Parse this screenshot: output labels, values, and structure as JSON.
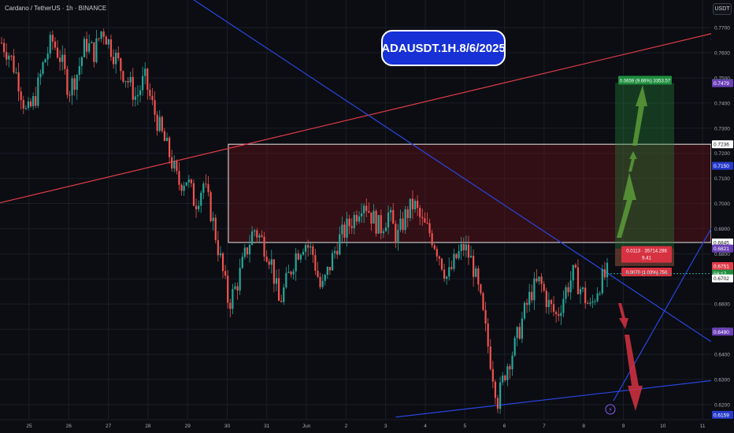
{
  "header": {
    "symbol_title": "Cardano / TetherUS · 1h · BINANCE",
    "idea_title": "ADAUSDT.1H.8/6/2025",
    "currency_button": "USDT"
  },
  "chart_data": {
    "type": "candlestick",
    "ylim": [
      0.614,
      0.781
    ],
    "y_ticks": [
      "0.7700",
      "0.7600",
      "0.7500",
      "0.7400",
      "0.7300",
      "0.7200",
      "0.7100",
      "0.7000",
      "0.6900",
      "0.6800",
      "0.6700",
      "0.6600",
      "0.6500",
      "0.6400",
      "0.6300",
      "0.6200"
    ],
    "x_labels": [
      "25",
      "26",
      "27",
      "28",
      "29",
      "30",
      "31",
      "Jun",
      "2",
      "3",
      "4",
      "5",
      "6",
      "7",
      "8",
      "9",
      "10",
      "11"
    ],
    "price_path": [
      [
        0,
        0.764
      ],
      [
        1,
        0.759
      ],
      [
        2,
        0.749
      ],
      [
        3,
        0.735
      ],
      [
        4,
        0.742
      ],
      [
        5,
        0.756
      ],
      [
        6,
        0.765
      ],
      [
        7,
        0.758
      ],
      [
        8,
        0.745
      ],
      [
        9,
        0.752
      ],
      [
        10,
        0.764
      ],
      [
        11,
        0.76
      ],
      [
        12,
        0.77
      ],
      [
        13,
        0.762
      ],
      [
        14,
        0.755
      ],
      [
        15,
        0.749
      ],
      [
        16,
        0.742
      ],
      [
        17,
        0.75
      ],
      [
        18,
        0.738
      ],
      [
        19,
        0.728
      ],
      [
        20,
        0.719
      ],
      [
        21,
        0.708
      ],
      [
        22,
        0.71
      ],
      [
        23,
        0.7
      ],
      [
        24,
        0.708
      ],
      [
        25,
        0.695
      ],
      [
        26,
        0.678
      ],
      [
        27,
        0.66
      ],
      [
        28,
        0.668
      ],
      [
        29,
        0.68
      ],
      [
        30,
        0.69
      ],
      [
        31,
        0.685
      ],
      [
        32,
        0.678
      ],
      [
        33,
        0.66
      ],
      [
        34,
        0.67
      ],
      [
        35,
        0.68
      ],
      [
        36,
        0.685
      ],
      [
        37,
        0.68
      ],
      [
        38,
        0.665
      ],
      [
        39,
        0.675
      ],
      [
        40,
        0.685
      ],
      [
        41,
        0.69
      ],
      [
        42,
        0.695
      ],
      [
        43,
        0.702
      ],
      [
        44,
        0.695
      ],
      [
        45,
        0.69
      ],
      [
        46,
        0.696
      ],
      [
        47,
        0.686
      ],
      [
        48,
        0.695
      ],
      [
        49,
        0.7
      ],
      [
        50,
        0.692
      ],
      [
        51,
        0.688
      ],
      [
        52,
        0.68
      ],
      [
        53,
        0.67
      ],
      [
        54,
        0.678
      ],
      [
        55,
        0.683
      ],
      [
        56,
        0.676
      ],
      [
        57,
        0.66
      ],
      [
        58,
        0.64
      ],
      [
        59,
        0.6215
      ],
      [
        60,
        0.635
      ],
      [
        61,
        0.643
      ],
      [
        62,
        0.655
      ],
      [
        63,
        0.665
      ],
      [
        64,
        0.669
      ],
      [
        65,
        0.66
      ],
      [
        66,
        0.655
      ],
      [
        67,
        0.665
      ],
      [
        68,
        0.672
      ],
      [
        69,
        0.665
      ],
      [
        70,
        0.658
      ],
      [
        71,
        0.668
      ],
      [
        72,
        0.672
      ]
    ],
    "levels": [
      {
        "label": "0.7480",
        "value": 0.748,
        "color": "#1e8e3e"
      },
      {
        "label": "0.7479",
        "value": 0.7479,
        "color": "#6a3fb5"
      },
      {
        "label": "0.7236",
        "value": 0.7236,
        "color": "#ffffff"
      },
      {
        "label": "0.7150",
        "value": 0.715,
        "color": "#2639c9"
      },
      {
        "label": "0.6845",
        "value": 0.6845,
        "color": "#ffffff"
      },
      {
        "label": "0.6821",
        "value": 0.6821,
        "color": "#6a3fb5"
      },
      {
        "label": "0.6751",
        "value": 0.6751,
        "color": "#e23b4a"
      },
      {
        "label": "58:17",
        "value": 0.6721,
        "color": "#1e8e3e"
      },
      {
        "label": "0.6702",
        "value": 0.6702,
        "color": "#ffffff"
      },
      {
        "label": "0.6490",
        "value": 0.649,
        "color": "#6a3fb5"
      },
      {
        "label": "0.6159",
        "value": 0.6159,
        "color": "#2639c9"
      }
    ],
    "supply_zone": {
      "top": 0.7236,
      "bottom": 0.6845
    },
    "position_tool": {
      "entry": 0.6751,
      "target": 0.748,
      "stop": 0.6821,
      "target_label": "0.0659 (9.66%) 3353.57",
      "stop_label_1": "0.0113 · 35714.286",
      "stop_label_2": "9.41",
      "entry_label": "0.0070 (1.03%) 750"
    },
    "trendlines": [
      {
        "name": "red-ascending-trendline",
        "color": "#e23b4a",
        "p1": [
          -1,
          0.7003
        ],
        "p2": [
          110,
          0.7676
        ]
      },
      {
        "name": "blue-descending-trendline",
        "color": "#2a45e0",
        "p1": [
          -1,
          0.832
        ],
        "p2": [
          110,
          0.645
        ]
      },
      {
        "name": "blue-top-right-line",
        "color": "#2a45e0",
        "p1": [
          70,
          0.785
        ],
        "p2": [
          110,
          0.765
        ]
      },
      {
        "name": "blue-ascending-support",
        "color": "#2a45e0",
        "p1": [
          59,
          0.6215
        ],
        "p2": [
          110,
          0.69
        ]
      },
      {
        "name": "blue-base-line",
        "color": "#2a45e0",
        "p1": [
          37,
          0.615
        ],
        "p2": [
          110,
          0.6295
        ]
      }
    ],
    "colors": {
      "up": "#26a69a",
      "down": "#ef5350",
      "grid": "#1a1e27",
      "axis_text": "#a7abb4"
    }
  }
}
